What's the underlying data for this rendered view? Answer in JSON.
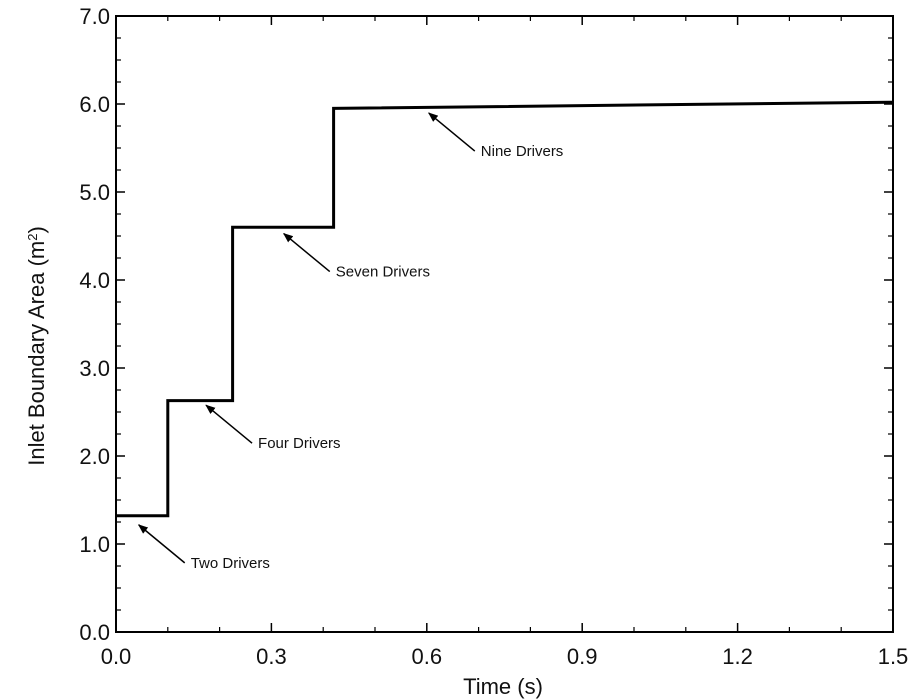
{
  "chart_data": {
    "type": "line",
    "title": "",
    "xlabel": "Time (s)",
    "ylabel_main": "Inlet Boundary Area (m",
    "ylabel_sup": "2",
    "ylabel_end": ")",
    "xlim": [
      0,
      1.5
    ],
    "ylim": [
      0,
      7
    ],
    "x_ticks": [
      0,
      0.3,
      0.6,
      0.9,
      1.2,
      1.5
    ],
    "x_tick_labels": [
      "0.0",
      "0.3",
      "0.6",
      "0.9",
      "1.2",
      "1.5"
    ],
    "y_ticks": [
      0,
      1,
      2,
      3,
      4,
      5,
      6,
      7
    ],
    "y_tick_labels": [
      "0.0",
      "1.0",
      "2.0",
      "3.0",
      "4.0",
      "5.0",
      "6.0",
      "7.0"
    ],
    "grid": false,
    "legend": "none",
    "line_color": "#000000",
    "series": [
      {
        "x": [
          0.0,
          0.1,
          0.1,
          0.225,
          0.225,
          0.42,
          0.42,
          1.5
        ],
        "y": [
          1.32,
          1.32,
          2.63,
          2.63,
          4.6,
          4.6,
          5.95,
          6.02
        ]
      }
    ],
    "annotations": [
      {
        "text": "Two Drivers",
        "x": 0.04,
        "y": 1.24
      },
      {
        "text": "Four Drivers",
        "x": 0.17,
        "y": 2.6
      },
      {
        "text": "Seven Drivers",
        "x": 0.32,
        "y": 4.55
      },
      {
        "text": "Nine Drivers",
        "x": 0.6,
        "y": 5.92
      }
    ]
  }
}
